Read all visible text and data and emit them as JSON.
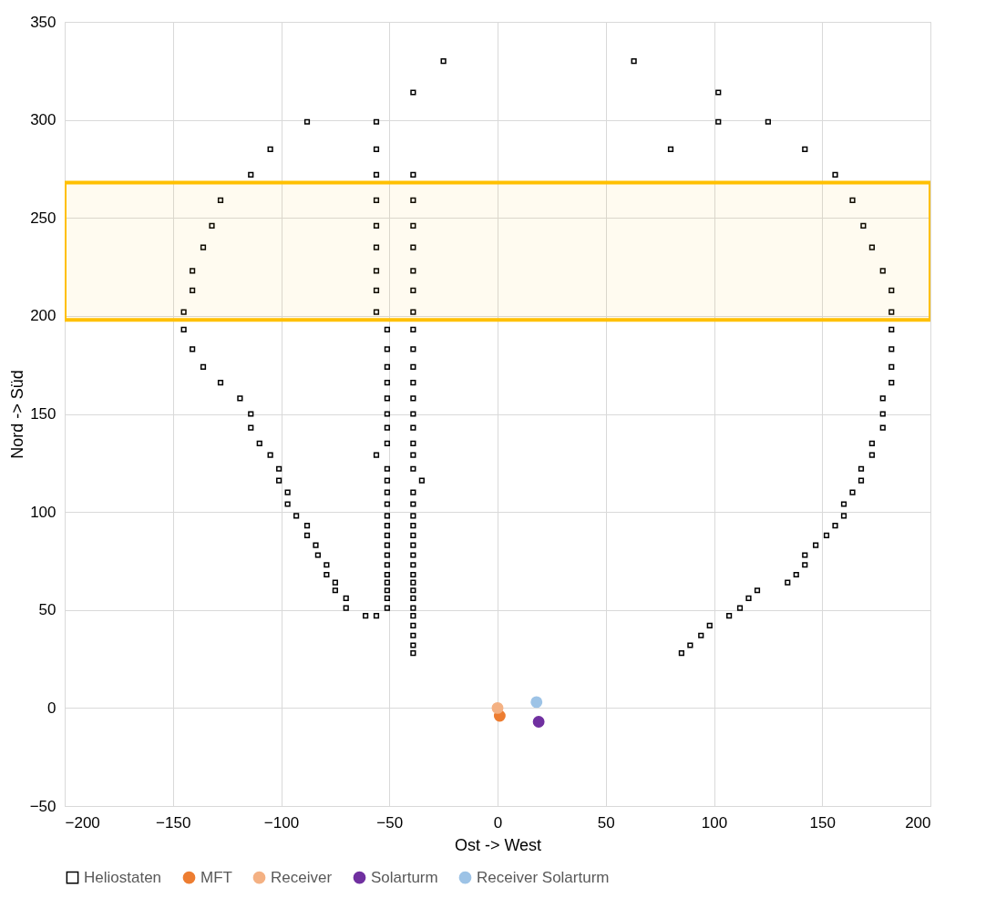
{
  "chart_data": {
    "type": "scatter",
    "xlabel": "Ost -> West",
    "ylabel": "Nord -> Süd",
    "xlim": [
      -200,
      200
    ],
    "ylim": [
      -50,
      350
    ],
    "xticks": [
      -200,
      -150,
      -100,
      -50,
      0,
      50,
      100,
      150,
      200
    ],
    "yticks": [
      -50,
      0,
      50,
      100,
      150,
      200,
      250,
      300,
      350
    ],
    "grid": true,
    "legend": "bottom",
    "marker": "circle",
    "bands": [
      {
        "axis": "y",
        "from": 198,
        "to": 268,
        "color": "#ffc000"
      }
    ],
    "series": [
      {
        "name": "Heliostaten",
        "color": "#000000",
        "marker": "square",
        "x": [
          -25,
          63,
          -39,
          102,
          -88,
          -56,
          102,
          125,
          -105,
          -56,
          80,
          142,
          -114,
          -56,
          -39,
          156,
          -128,
          -56,
          -39,
          164,
          -132,
          -56,
          -39,
          169,
          -136,
          -56,
          -39,
          173,
          -141,
          -56,
          -39,
          178,
          -141,
          -56,
          -39,
          182,
          -145,
          -56,
          -39,
          182,
          -145,
          -51,
          -39,
          182,
          -141,
          -51,
          -39,
          182,
          -136,
          -51,
          -39,
          182,
          -128,
          -51,
          -39,
          182,
          -119,
          -51,
          -39,
          178,
          -114,
          -51,
          -39,
          178,
          -114,
          -51,
          -39,
          178,
          -110,
          -51,
          -39,
          173,
          -105,
          -56,
          -39,
          173,
          -101,
          -51,
          -39,
          168,
          -101,
          -51,
          -35,
          168,
          -97,
          -51,
          -39,
          164,
          -97,
          -51,
          -39,
          160,
          -93,
          -51,
          -39,
          160,
          -88,
          -51,
          -39,
          156,
          -88,
          -51,
          -39,
          152,
          -84,
          -51,
          -39,
          147,
          -83,
          -51,
          -39,
          142,
          -79,
          -51,
          -39,
          142,
          -79,
          -51,
          -39,
          138,
          -75,
          -51,
          -39,
          134,
          -75,
          -51,
          -39,
          120,
          -70,
          -51,
          -39,
          116,
          -70,
          -51,
          -39,
          112,
          -61,
          -56,
          -39,
          107,
          -39,
          98,
          -39,
          94,
          -39,
          89,
          -39,
          85
        ],
        "values": [
          330,
          330,
          314,
          314,
          299,
          299,
          299,
          299,
          285,
          285,
          285,
          285,
          272,
          272,
          272,
          272,
          259,
          259,
          259,
          259,
          246,
          246,
          246,
          246,
          235,
          235,
          235,
          235,
          223,
          223,
          223,
          223,
          213,
          213,
          213,
          213,
          202,
          202,
          202,
          202,
          193,
          193,
          193,
          193,
          183,
          183,
          183,
          183,
          174,
          174,
          174,
          174,
          166,
          166,
          166,
          166,
          158,
          158,
          158,
          158,
          150,
          150,
          150,
          150,
          143,
          143,
          143,
          143,
          135,
          135,
          135,
          135,
          129,
          129,
          129,
          129,
          122,
          122,
          122,
          122,
          116,
          116,
          116,
          116,
          110,
          110,
          110,
          110,
          104,
          104,
          104,
          104,
          98,
          98,
          98,
          98,
          93,
          93,
          93,
          93,
          88,
          88,
          88,
          88,
          83,
          83,
          83,
          83,
          78,
          78,
          78,
          78,
          73,
          73,
          73,
          73,
          68,
          68,
          68,
          68,
          64,
          64,
          64,
          64,
          60,
          60,
          60,
          60,
          56,
          56,
          56,
          56,
          51,
          51,
          51,
          51,
          47,
          47,
          47,
          47,
          42,
          42,
          37,
          37,
          32,
          32,
          28,
          28
        ]
      },
      {
        "name": "MFT",
        "color": "#ed7d31",
        "x": [
          1
        ],
        "values": [
          -4
        ]
      },
      {
        "name": "Receiver",
        "color": "#f4b183",
        "x": [
          0
        ],
        "values": [
          0
        ]
      },
      {
        "name": "Solarturm",
        "color": "#7030a0",
        "x": [
          19
        ],
        "values": [
          -7
        ]
      },
      {
        "name": "Receiver Solarturm",
        "color": "#9dc3e6",
        "x": [
          18
        ],
        "values": [
          3
        ]
      }
    ]
  }
}
